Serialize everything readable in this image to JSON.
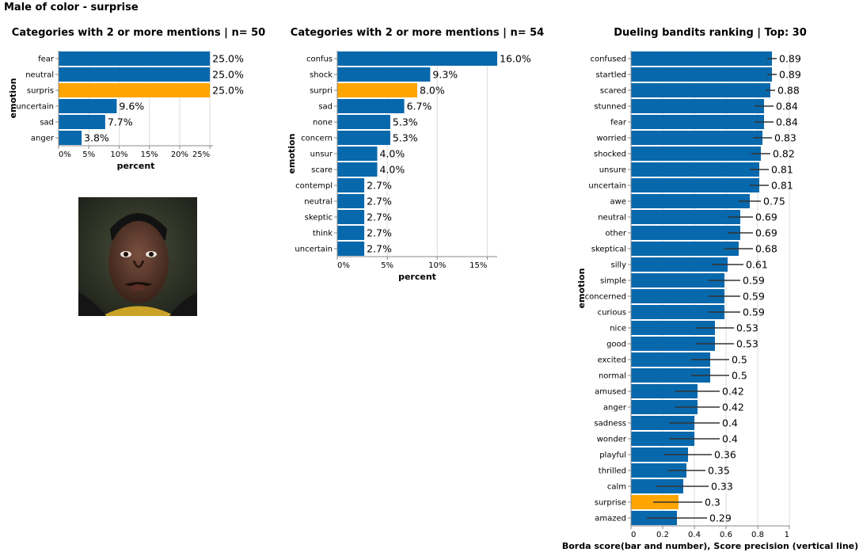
{
  "page": {
    "title": "Male of color - surprise"
  },
  "colors": {
    "bar": "#0868ac",
    "highlight": "#ffa500",
    "grid": "#dddddd",
    "axis": "#888888"
  },
  "photo": {
    "description_icon": "face-photo"
  },
  "chart_data": [
    {
      "type": "bar",
      "orientation": "horizontal",
      "title": "Categories with 2 or more mentions | n= 50",
      "xlabel": "percent",
      "ylabel": "emotion",
      "xlim": [
        0,
        25.5
      ],
      "xticks": [
        0,
        5,
        10,
        15,
        20,
        25
      ],
      "xtick_labels": [
        "0%",
        "5%",
        "10%",
        "15%",
        "20%",
        "25%"
      ],
      "grid": true,
      "categories": [
        "fear",
        "neutral",
        "surpris",
        "uncertain",
        "sad",
        "anger"
      ],
      "values": [
        25.0,
        25.0,
        25.0,
        9.6,
        7.7,
        3.8
      ],
      "labels": [
        "25.0%",
        "25.0%",
        "25.0%",
        "9.6%",
        "7.7%",
        "3.8%"
      ],
      "highlight": [
        "surpris"
      ]
    },
    {
      "type": "bar",
      "orientation": "horizontal",
      "title": "Categories with 2 or more mentions | n= 54",
      "xlabel": "percent",
      "ylabel": "emotion",
      "xlim": [
        0,
        16
      ],
      "xticks": [
        0,
        5,
        10,
        15
      ],
      "xtick_labels": [
        "0%",
        "5%",
        "10%",
        "15%"
      ],
      "grid": true,
      "categories": [
        "confus",
        "shock",
        "surpri",
        "sad",
        "none",
        "concern",
        "unsur",
        "scare",
        "contempl",
        "neutral",
        "skeptic",
        "think",
        "uncertain"
      ],
      "values": [
        16.0,
        9.3,
        8.0,
        6.7,
        5.3,
        5.3,
        4.0,
        4.0,
        2.7,
        2.7,
        2.7,
        2.7,
        2.7
      ],
      "labels": [
        "16.0%",
        "9.3%",
        "8.0%",
        "6.7%",
        "5.3%",
        "5.3%",
        "4.0%",
        "4.0%",
        "2.7%",
        "2.7%",
        "2.7%",
        "2.7%",
        "2.7%"
      ],
      "highlight": [
        "surpri"
      ]
    },
    {
      "type": "bar",
      "orientation": "horizontal",
      "title": "Dueling bandits ranking | Top: 30",
      "xlabel": "Borda score(bar and number), Score precision (vertical line)",
      "ylabel": "emotion",
      "xlim": [
        0,
        1
      ],
      "xticks": [
        0,
        0.2,
        0.4,
        0.6,
        0.8,
        1
      ],
      "xtick_labels": [
        "0",
        "0.2",
        "0.4",
        "0.6",
        "0.8",
        "1"
      ],
      "grid": true,
      "categories": [
        "confused",
        "startled",
        "scared",
        "stunned",
        "fear",
        "worried",
        "shocked",
        "unsure",
        "uncertain",
        "awe",
        "neutral",
        "other",
        "skeptical",
        "silly",
        "simple",
        "concerned",
        "curious",
        "nice",
        "good",
        "excited",
        "normal",
        "amused",
        "anger",
        "sadness",
        "wonder",
        "playful",
        "thrilled",
        "calm",
        "surprise",
        "amazed"
      ],
      "values": [
        0.89,
        0.89,
        0.88,
        0.84,
        0.84,
        0.83,
        0.82,
        0.81,
        0.81,
        0.75,
        0.69,
        0.69,
        0.68,
        0.61,
        0.59,
        0.59,
        0.59,
        0.53,
        0.53,
        0.5,
        0.5,
        0.42,
        0.42,
        0.4,
        0.4,
        0.36,
        0.35,
        0.33,
        0.3,
        0.29
      ],
      "labels": [
        "0.89",
        "0.89",
        "0.88",
        "0.84",
        "0.84",
        "0.83",
        "0.82",
        "0.81",
        "0.81",
        "0.75",
        "0.69",
        "0.69",
        "0.68",
        "0.61",
        "0.59",
        "0.59",
        "0.59",
        "0.53",
        "0.53",
        "0.5",
        "0.5",
        "0.42",
        "0.42",
        "0.4",
        "0.4",
        "0.36",
        "0.35",
        "0.33",
        "0.3",
        "0.29"
      ],
      "error_low": [
        0.86,
        0.86,
        0.85,
        0.78,
        0.78,
        0.77,
        0.76,
        0.75,
        0.75,
        0.68,
        0.61,
        0.61,
        0.59,
        0.51,
        0.49,
        0.49,
        0.49,
        0.41,
        0.41,
        0.38,
        0.38,
        0.28,
        0.28,
        0.24,
        0.24,
        0.21,
        0.23,
        0.16,
        0.14,
        0.1
      ],
      "error_high": [
        0.92,
        0.92,
        0.91,
        0.9,
        0.9,
        0.89,
        0.88,
        0.87,
        0.87,
        0.82,
        0.77,
        0.77,
        0.77,
        0.71,
        0.69,
        0.69,
        0.69,
        0.65,
        0.65,
        0.62,
        0.62,
        0.56,
        0.56,
        0.56,
        0.56,
        0.51,
        0.47,
        0.49,
        0.45,
        0.48
      ],
      "highlight": [
        "surprise"
      ]
    }
  ]
}
